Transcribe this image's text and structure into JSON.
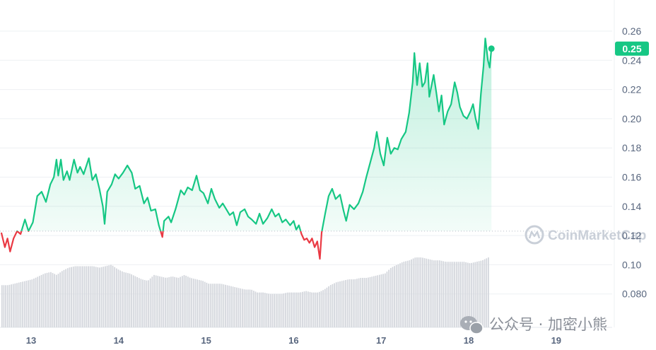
{
  "chart_data": {
    "type": "line",
    "title": "",
    "xlabel": "",
    "ylabel": "",
    "x_ticks": [
      {
        "label": "13",
        "day": 13
      },
      {
        "label": "14",
        "day": 14
      },
      {
        "label": "15",
        "day": 15
      },
      {
        "label": "16",
        "day": 16
      },
      {
        "label": "17",
        "day": 17
      },
      {
        "label": "18",
        "day": 18
      },
      {
        "label": "19",
        "day": 19
      }
    ],
    "y_ticks": [
      "0.080",
      "0.10",
      "0.12",
      "0.14",
      "0.16",
      "0.18",
      "0.20",
      "0.22",
      "0.24",
      "0.26"
    ],
    "ylim": [
      0.07,
      0.27
    ],
    "baseline_price": 0.123,
    "current_price_label": "0.25",
    "current_price": 0.248,
    "colors": {
      "up": "#16c784",
      "down": "#ea3943",
      "volume": "#d3d6dc",
      "grid": "#eef0f3",
      "badge": "#16c784"
    },
    "series": [
      {
        "points": [
          [
            12.66,
            0.122
          ],
          [
            12.7,
            0.112
          ],
          [
            12.73,
            0.118
          ],
          [
            12.76,
            0.109
          ],
          [
            12.8,
            0.118
          ],
          [
            12.84,
            0.123
          ],
          [
            12.88,
            0.121
          ],
          [
            12.93,
            0.131
          ],
          [
            12.97,
            0.123
          ],
          [
            13.02,
            0.129
          ],
          [
            13.07,
            0.147
          ],
          [
            13.12,
            0.15
          ],
          [
            13.17,
            0.143
          ],
          [
            13.22,
            0.155
          ],
          [
            13.26,
            0.16
          ],
          [
            13.29,
            0.172
          ],
          [
            13.31,
            0.161
          ],
          [
            13.34,
            0.172
          ],
          [
            13.37,
            0.158
          ],
          [
            13.41,
            0.164
          ],
          [
            13.44,
            0.158
          ],
          [
            13.49,
            0.172
          ],
          [
            13.53,
            0.163
          ],
          [
            13.56,
            0.167
          ],
          [
            13.6,
            0.162
          ],
          [
            13.66,
            0.173
          ],
          [
            13.7,
            0.158
          ],
          [
            13.74,
            0.162
          ],
          [
            13.78,
            0.152
          ],
          [
            13.82,
            0.14
          ],
          [
            13.84,
            0.128
          ],
          [
            13.87,
            0.15
          ],
          [
            13.92,
            0.155
          ],
          [
            13.96,
            0.162
          ],
          [
            14.0,
            0.159
          ],
          [
            14.05,
            0.163
          ],
          [
            14.1,
            0.168
          ],
          [
            14.15,
            0.163
          ],
          [
            14.19,
            0.152
          ],
          [
            14.24,
            0.154
          ],
          [
            14.29,
            0.142
          ],
          [
            14.33,
            0.146
          ],
          [
            14.37,
            0.137
          ],
          [
            14.42,
            0.138
          ],
          [
            14.46,
            0.127
          ],
          [
            14.5,
            0.119
          ],
          [
            14.52,
            0.13
          ],
          [
            14.57,
            0.133
          ],
          [
            14.6,
            0.129
          ],
          [
            14.65,
            0.138
          ],
          [
            14.71,
            0.151
          ],
          [
            14.75,
            0.148
          ],
          [
            14.79,
            0.153
          ],
          [
            14.84,
            0.151
          ],
          [
            14.89,
            0.161
          ],
          [
            14.93,
            0.151
          ],
          [
            14.97,
            0.149
          ],
          [
            15.02,
            0.142
          ],
          [
            15.06,
            0.152
          ],
          [
            15.1,
            0.145
          ],
          [
            15.15,
            0.139
          ],
          [
            15.19,
            0.142
          ],
          [
            15.23,
            0.138
          ],
          [
            15.27,
            0.134
          ],
          [
            15.31,
            0.136
          ],
          [
            15.35,
            0.127
          ],
          [
            15.39,
            0.136
          ],
          [
            15.44,
            0.138
          ],
          [
            15.48,
            0.133
          ],
          [
            15.52,
            0.131
          ],
          [
            15.57,
            0.128
          ],
          [
            15.61,
            0.135
          ],
          [
            15.65,
            0.128
          ],
          [
            15.7,
            0.132
          ],
          [
            15.75,
            0.138
          ],
          [
            15.79,
            0.133
          ],
          [
            15.83,
            0.135
          ],
          [
            15.87,
            0.129
          ],
          [
            15.91,
            0.131
          ],
          [
            15.96,
            0.127
          ],
          [
            16.0,
            0.13
          ],
          [
            16.03,
            0.124
          ],
          [
            16.06,
            0.127
          ],
          [
            16.09,
            0.121
          ],
          [
            16.12,
            0.117
          ],
          [
            16.15,
            0.118
          ],
          [
            16.18,
            0.115
          ],
          [
            16.21,
            0.118
          ],
          [
            16.24,
            0.112
          ],
          [
            16.27,
            0.116
          ],
          [
            16.3,
            0.104
          ],
          [
            16.32,
            0.122
          ],
          [
            16.36,
            0.135
          ],
          [
            16.4,
            0.147
          ],
          [
            16.44,
            0.152
          ],
          [
            16.48,
            0.145
          ],
          [
            16.53,
            0.148
          ],
          [
            16.57,
            0.137
          ],
          [
            16.6,
            0.13
          ],
          [
            16.64,
            0.141
          ],
          [
            16.69,
            0.138
          ],
          [
            16.74,
            0.142
          ],
          [
            16.79,
            0.15
          ],
          [
            16.83,
            0.16
          ],
          [
            16.88,
            0.171
          ],
          [
            16.92,
            0.18
          ],
          [
            16.95,
            0.191
          ],
          [
            16.99,
            0.176
          ],
          [
            17.03,
            0.168
          ],
          [
            17.07,
            0.187
          ],
          [
            17.11,
            0.176
          ],
          [
            17.15,
            0.18
          ],
          [
            17.19,
            0.179
          ],
          [
            17.23,
            0.186
          ],
          [
            17.28,
            0.191
          ],
          [
            17.32,
            0.204
          ],
          [
            17.36,
            0.225
          ],
          [
            17.38,
            0.245
          ],
          [
            17.41,
            0.223
          ],
          [
            17.44,
            0.238
          ],
          [
            17.47,
            0.222
          ],
          [
            17.5,
            0.225
          ],
          [
            17.53,
            0.238
          ],
          [
            17.55,
            0.215
          ],
          [
            17.6,
            0.23
          ],
          [
            17.63,
            0.218
          ],
          [
            17.66,
            0.205
          ],
          [
            17.69,
            0.216
          ],
          [
            17.72,
            0.196
          ],
          [
            17.76,
            0.205
          ],
          [
            17.8,
            0.21
          ],
          [
            17.84,
            0.225
          ],
          [
            17.87,
            0.218
          ],
          [
            17.9,
            0.208
          ],
          [
            17.94,
            0.202
          ],
          [
            17.98,
            0.2
          ],
          [
            18.02,
            0.205
          ],
          [
            18.05,
            0.21
          ],
          [
            18.08,
            0.2
          ],
          [
            18.11,
            0.193
          ],
          [
            18.14,
            0.217
          ],
          [
            18.17,
            0.236
          ],
          [
            18.19,
            0.255
          ],
          [
            18.22,
            0.24
          ],
          [
            18.24,
            0.235
          ],
          [
            18.26,
            0.248
          ]
        ]
      }
    ],
    "volume": {
      "day_start": 12.66,
      "day_end": 18.24,
      "values": [
        0.086,
        0.086,
        0.087,
        0.088,
        0.089,
        0.09,
        0.092,
        0.094,
        0.095,
        0.093,
        0.096,
        0.098,
        0.099,
        0.099,
        0.099,
        0.099,
        0.098,
        0.099,
        0.1,
        0.097,
        0.095,
        0.094,
        0.092,
        0.09,
        0.089,
        0.093,
        0.092,
        0.091,
        0.092,
        0.091,
        0.093,
        0.091,
        0.09,
        0.089,
        0.087,
        0.087,
        0.087,
        0.086,
        0.085,
        0.084,
        0.083,
        0.083,
        0.081,
        0.081,
        0.08,
        0.08,
        0.08,
        0.081,
        0.081,
        0.081,
        0.082,
        0.081,
        0.081,
        0.083,
        0.086,
        0.088,
        0.089,
        0.09,
        0.09,
        0.091,
        0.091,
        0.092,
        0.093,
        0.094,
        0.098,
        0.1,
        0.102,
        0.103,
        0.105,
        0.105,
        0.104,
        0.103,
        0.103,
        0.102,
        0.102,
        0.102,
        0.102,
        0.101,
        0.102,
        0.103,
        0.105
      ]
    }
  },
  "watermark": {
    "brand": "CoinMarketCap"
  },
  "social_watermark": {
    "text": "公众号 · 加密小熊"
  }
}
